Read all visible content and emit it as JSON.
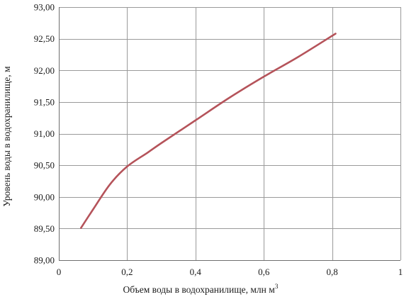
{
  "chart_data": {
    "type": "line",
    "xlabel": "Объем воды в водохранилище, млн м",
    "xlabel_sup": "3",
    "ylabel": "Уровень воды в водохранилище, м",
    "xlim": [
      0,
      1
    ],
    "ylim": [
      89.0,
      93.0
    ],
    "x_ticks": [
      0,
      0.2,
      0.4,
      0.6,
      0.8,
      1
    ],
    "x_tick_labels": [
      "0",
      "0,2",
      "0,4",
      "0,6",
      "0,8",
      "1"
    ],
    "y_ticks": [
      89.0,
      89.5,
      90.0,
      90.5,
      91.0,
      91.5,
      92.0,
      92.5,
      93.0
    ],
    "y_tick_labels": [
      "89,00",
      "89,50",
      "90,00",
      "90,50",
      "91,00",
      "91,50",
      "92,00",
      "92,50",
      "93,00"
    ],
    "grid": true,
    "series": [
      {
        "color": "#b5535a",
        "points": [
          {
            "x": 0.065,
            "y": 89.51
          },
          {
            "x": 0.1,
            "y": 89.8
          },
          {
            "x": 0.15,
            "y": 90.2
          },
          {
            "x": 0.2,
            "y": 90.48
          },
          {
            "x": 0.26,
            "y": 90.7
          },
          {
            "x": 0.3,
            "y": 90.85
          },
          {
            "x": 0.4,
            "y": 91.21
          },
          {
            "x": 0.5,
            "y": 91.57
          },
          {
            "x": 0.6,
            "y": 91.9
          },
          {
            "x": 0.7,
            "y": 92.21
          },
          {
            "x": 0.81,
            "y": 92.58
          }
        ]
      }
    ]
  }
}
